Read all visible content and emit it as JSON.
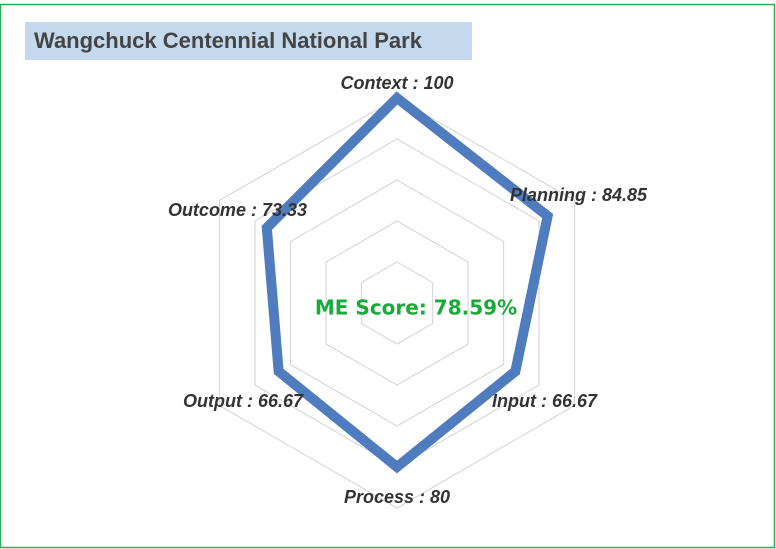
{
  "chart_data": {
    "type": "radar",
    "title": "Wangchuck Centennial National Park",
    "categories": [
      "Context",
      "Planning",
      "Input",
      "Process",
      "Output",
      "Outcome"
    ],
    "label_separator": " : ",
    "values": [
      100,
      84.85,
      66.67,
      80,
      66.67,
      73.33
    ],
    "color": "#4f7bbf",
    "ylim": [
      0,
      100
    ],
    "yticks": [
      20,
      40,
      60,
      80,
      100
    ],
    "grid": true,
    "annotation": "ME Score: 78.59%"
  }
}
